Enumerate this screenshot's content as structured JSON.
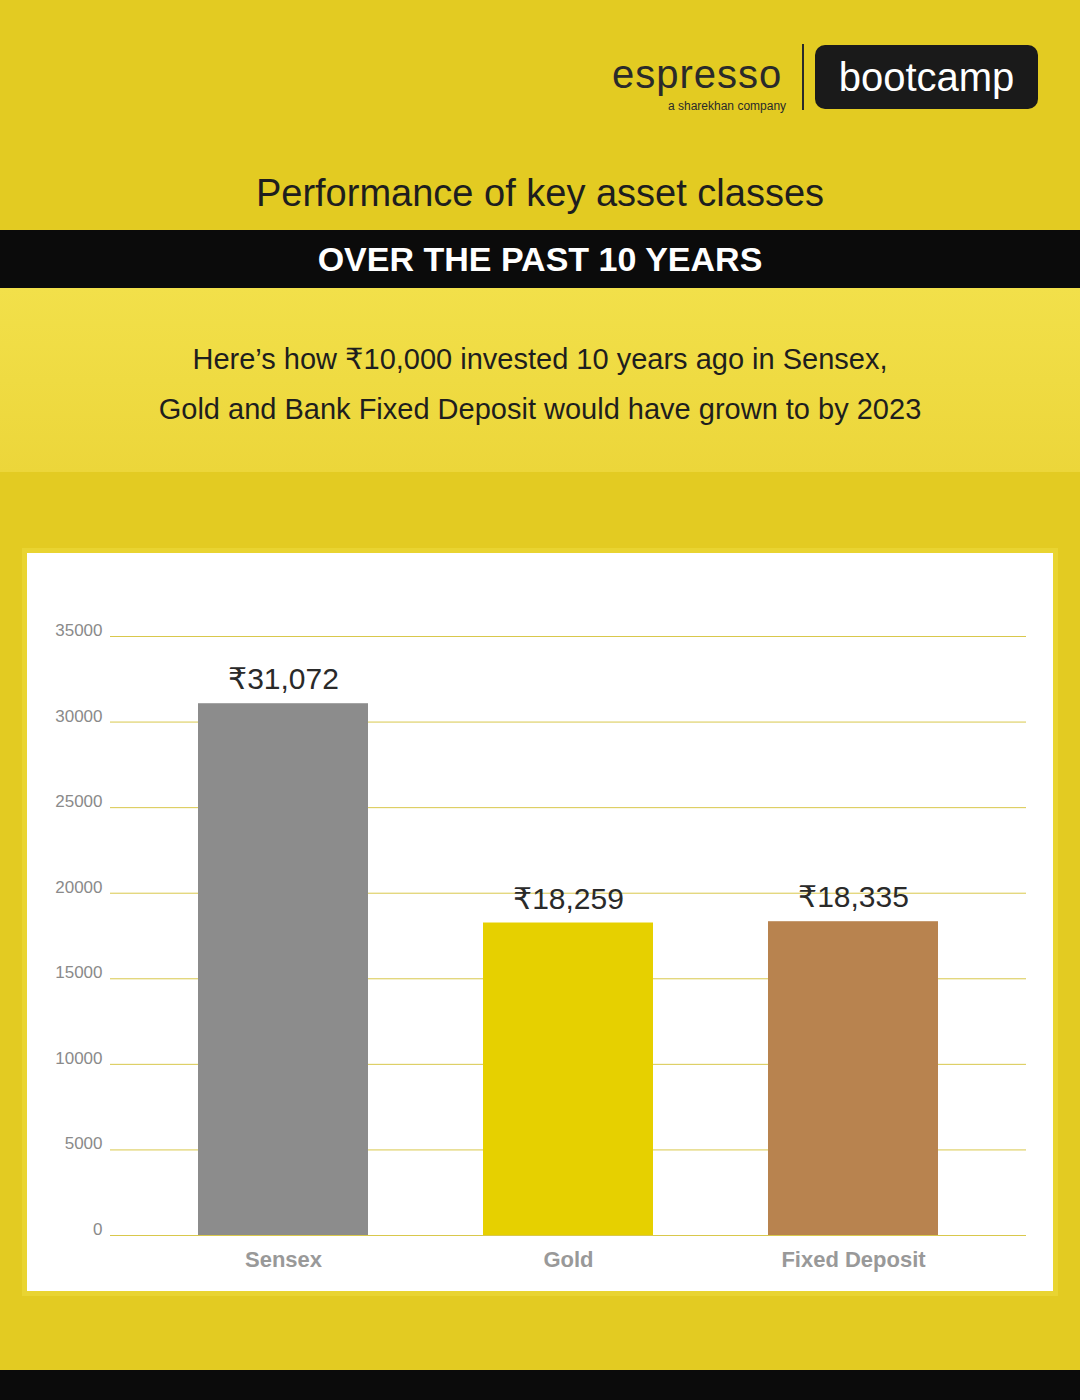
{
  "brand": {
    "name": "espresso",
    "tagline": "a sharekhan company",
    "product": "bootcamp"
  },
  "chart_data": {
    "type": "bar",
    "title": "Performance of key asset classes",
    "banner": "OVER THE PAST 10 YEARS",
    "subtitle": [
      "Here’s how ₹10,000 invested 10 years ago in Sensex,",
      "Gold and Bank Fixed Deposit would have grown to by 2023"
    ],
    "categories": [
      "Sensex",
      "Gold",
      "Fixed Deposit"
    ],
    "values": [
      31072,
      18259,
      18335
    ],
    "value_labels": [
      "₹31,072",
      "₹18,259",
      "₹18,335"
    ],
    "colors": [
      "#8c8c8c",
      "#e6d000",
      "#b8834f"
    ],
    "ylim": [
      0,
      35000
    ],
    "yticks": [
      0,
      5000,
      10000,
      15000,
      20000,
      25000,
      30000,
      35000
    ],
    "grid": true,
    "data_labels": true
  }
}
